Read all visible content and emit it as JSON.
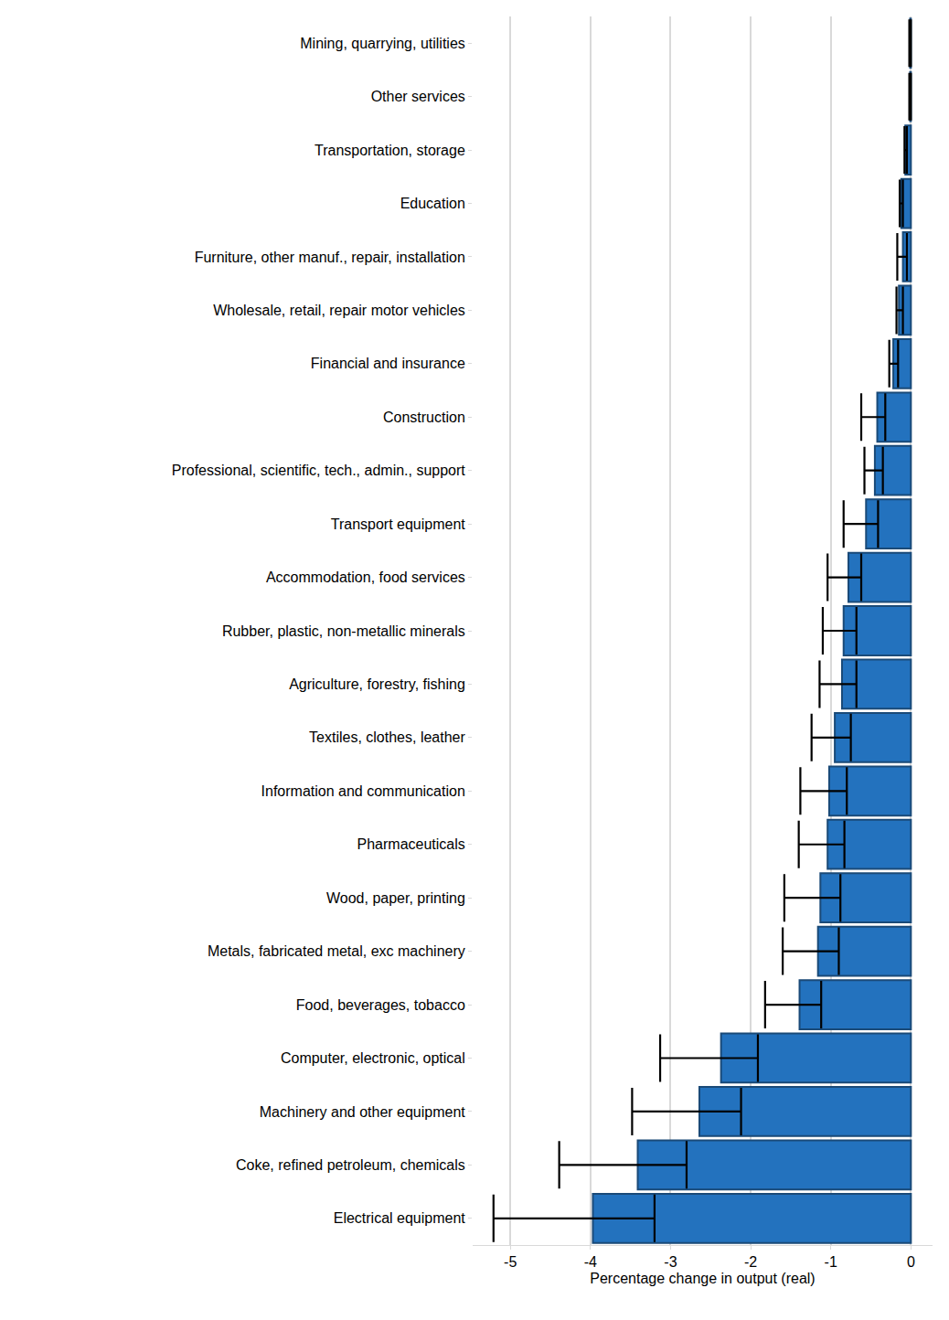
{
  "chart_data": {
    "type": "bar",
    "orientation": "horizontal",
    "x_label": "Percentage change in output (real)",
    "categories": [
      "Mining, quarrying, utilities",
      "Other services",
      "Transportation, storage",
      "Education",
      "Furniture, other manuf., repair, installation",
      "Wholesale, retail, repair motor vehicles",
      "Financial and insurance",
      "Construction",
      "Professional, scientific, tech., admin., support",
      "Transport equipment",
      "Accommodation, food services",
      "Rubber, plastic, non-metallic minerals",
      "Agriculture, forestry, fishing",
      "Textiles, clothes, leather",
      "Information and communication",
      "Pharmaceuticals",
      "Wood, paper, printing",
      "Metals, fabricated metal, exc machinery",
      "Food, beverages, tobacco",
      "Computer, electronic, optical",
      "Machinery and other equipment",
      "Coke, refined petroleum, chemicals",
      "Electrical equipment"
    ],
    "values": [
      -0.01,
      -0.01,
      -0.07,
      -0.12,
      -0.1,
      -0.15,
      -0.22,
      -0.42,
      -0.45,
      -0.56,
      -0.78,
      -0.84,
      -0.86,
      -0.95,
      -1.02,
      -1.04,
      -1.13,
      -1.16,
      -1.39,
      -2.37,
      -2.64,
      -3.41,
      -3.97
    ],
    "error_low": [
      -0.02,
      -0.02,
      -0.08,
      -0.14,
      -0.17,
      -0.18,
      -0.27,
      -0.62,
      -0.58,
      -0.84,
      -1.04,
      -1.1,
      -1.14,
      -1.24,
      -1.38,
      -1.4,
      -1.58,
      -1.6,
      -1.82,
      -3.13,
      -3.48,
      -4.39,
      -5.21
    ],
    "error_high": [
      0,
      0,
      -0.05,
      -0.1,
      -0.05,
      -0.1,
      -0.16,
      -0.32,
      -0.35,
      -0.41,
      -0.62,
      -0.68,
      -0.68,
      -0.75,
      -0.8,
      -0.83,
      -0.88,
      -0.9,
      -1.12,
      -1.91,
      -2.12,
      -2.8,
      -3.2
    ],
    "color": "#2372be",
    "xlim": [
      -5.47,
      0.27
    ],
    "xticks": [
      -5,
      -4,
      -3,
      -2,
      -1,
      0
    ],
    "grid": true
  }
}
